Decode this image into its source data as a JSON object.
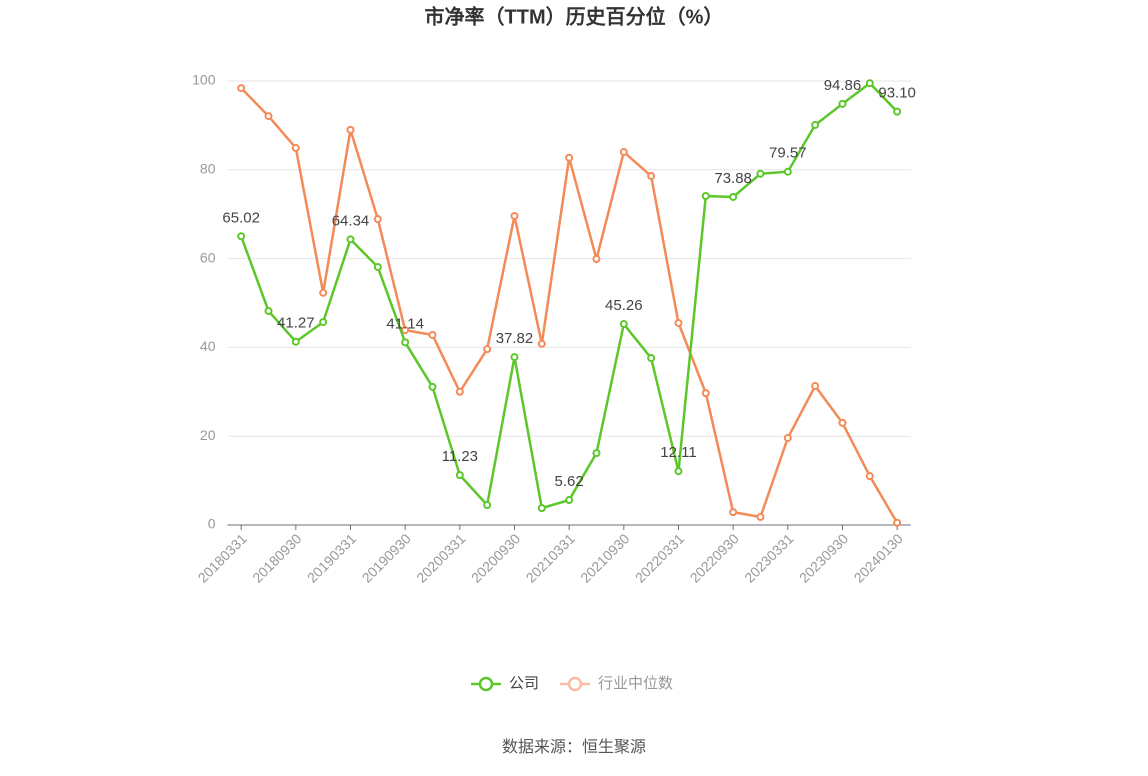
{
  "chart_data": {
    "type": "line",
    "title": "市净率（TTM）历史百分位（%）",
    "categories": [
      "20180331",
      null,
      "20180930",
      null,
      "20190331",
      null,
      "20190930",
      null,
      "20200331",
      null,
      "20200930",
      null,
      "20210331",
      null,
      "20210930",
      null,
      "20220331",
      null,
      "20220930",
      null,
      "20230331",
      null,
      "20230930",
      null,
      "20240130"
    ],
    "series": [
      {
        "name": "公司",
        "color": "#5cc72a",
        "values": [
          65.02,
          48.2,
          41.27,
          45.7,
          64.34,
          58.1,
          41.14,
          31.1,
          11.23,
          4.5,
          37.82,
          3.8,
          5.62,
          16.2,
          45.26,
          37.6,
          12.11,
          74.1,
          73.88,
          79.1,
          79.57,
          90.1,
          94.86,
          99.5,
          93.1
        ],
        "value_labels": [
          "65.02",
          null,
          "41.27",
          null,
          "64.34",
          null,
          "41.14",
          null,
          "11.23",
          null,
          "37.82",
          null,
          "5.62",
          null,
          "45.26",
          null,
          "12.11",
          null,
          "73.88",
          null,
          "79.57",
          null,
          "94.86",
          null,
          "93.10"
        ]
      },
      {
        "name": "行业中位数",
        "color": "#f38a58",
        "values": [
          98.4,
          92.1,
          84.9,
          52.3,
          89.0,
          68.9,
          43.9,
          42.8,
          30.0,
          39.6,
          69.6,
          40.8,
          82.7,
          59.9,
          84.0,
          78.6,
          45.5,
          29.7,
          2.9,
          1.8,
          19.6,
          31.3,
          23.0,
          11.0,
          0.5
        ]
      }
    ],
    "ylim": [
      0,
      100
    ],
    "yticks": [
      0,
      20,
      40,
      60,
      80,
      100
    ],
    "grid": true,
    "source": "数据来源：恒生聚源"
  }
}
